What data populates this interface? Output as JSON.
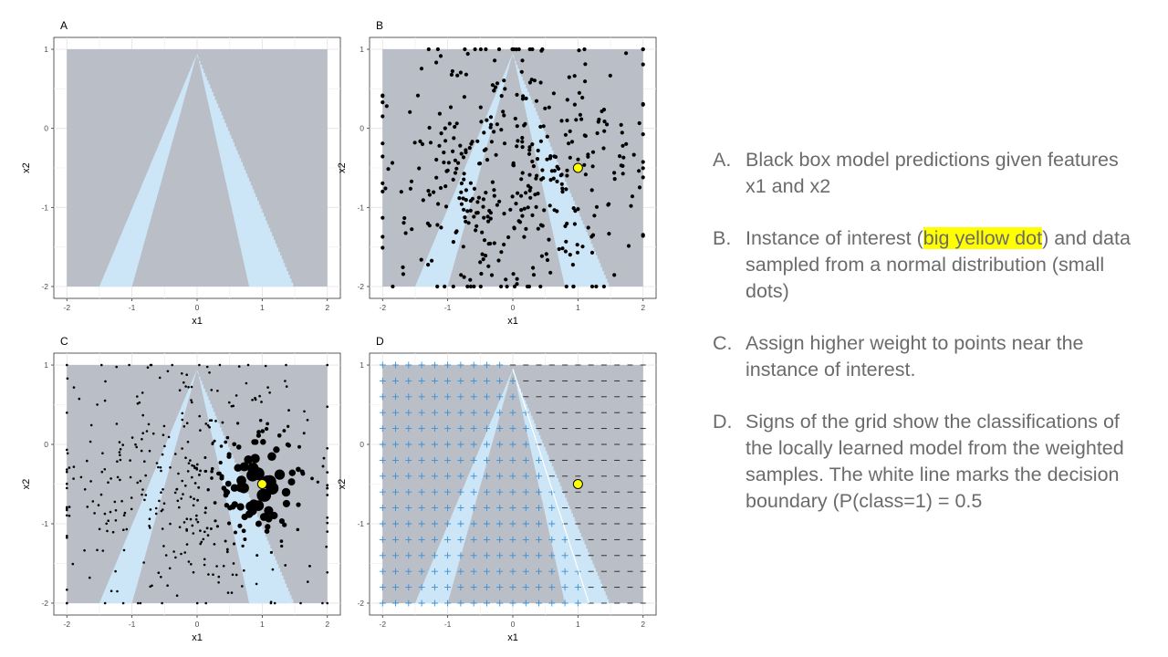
{
  "panels": [
    {
      "letter": "A",
      "xlabel": "x1",
      "ylabel": "x2"
    },
    {
      "letter": "B",
      "xlabel": "x1",
      "ylabel": "x2"
    },
    {
      "letter": "C",
      "xlabel": "x1",
      "ylabel": "x2"
    },
    {
      "letter": "D",
      "xlabel": "x1",
      "ylabel": "x2"
    }
  ],
  "chart_data": [
    {
      "type": "heatmap",
      "panel": "A",
      "xlabel": "x1",
      "ylabel": "x2",
      "xlim": [
        -2.2,
        2.2
      ],
      "ylim": [
        -2.15,
        1.15
      ],
      "xticks": [
        -2,
        -1,
        0,
        1,
        2
      ],
      "yticks": [
        -2,
        -1,
        0,
        1
      ],
      "grid": true,
      "regions": [
        {
          "class": 1,
          "shape": "inverted-V band",
          "apex": [
            0,
            0.95
          ],
          "left_edge_at_y=-2": [
            -1.5,
            -1.0
          ],
          "right_edge_at_y=-2": [
            0.8,
            1.5
          ]
        },
        {
          "class": 0,
          "shape": "rest of domain"
        }
      ],
      "colors": {
        "class0": "#b6bcc4",
        "class1": "#cde6f7"
      }
    },
    {
      "type": "scatter",
      "panel": "B",
      "xlabel": "x1",
      "ylabel": "x2",
      "xlim": [
        -2.2,
        2.2
      ],
      "ylim": [
        -2.15,
        1.15
      ],
      "xticks": [
        -2,
        -1,
        0,
        1,
        2
      ],
      "yticks": [
        -2,
        -1,
        0,
        1
      ],
      "background": "same classification map as A",
      "samples": {
        "n": 420,
        "distribution": "normal, clipped to [-2,2]x[-2,1]",
        "size": "small",
        "color": "#000000"
      },
      "instance_of_interest": {
        "x": 1.0,
        "y": -0.5,
        "color": "#ffff00"
      }
    },
    {
      "type": "scatter",
      "panel": "C",
      "xlabel": "x1",
      "ylabel": "x2",
      "xlim": [
        -2.2,
        2.2
      ],
      "ylim": [
        -2.15,
        1.15
      ],
      "xticks": [
        -2,
        -1,
        0,
        1,
        2
      ],
      "yticks": [
        -2,
        -1,
        0,
        1
      ],
      "background": "same classification map as A",
      "samples": {
        "n": 420,
        "size": "weight = proximity to instance of interest",
        "color": "#000000"
      },
      "instance_of_interest": {
        "x": 1.0,
        "y": -0.5,
        "color": "#ffff00"
      }
    },
    {
      "type": "scatter",
      "panel": "D",
      "xlabel": "x1",
      "ylabel": "x2",
      "xlim": [
        -2.2,
        2.2
      ],
      "ylim": [
        -2.15,
        1.15
      ],
      "xticks": [
        -2,
        -1,
        0,
        1,
        2
      ],
      "yticks": [
        -2,
        -1,
        0,
        1
      ],
      "background": "same classification map as A",
      "grid_signs": {
        "plus_color": "#3b8fd4",
        "minus_color": "#222222",
        "step": 0.2
      },
      "decision_boundary": {
        "from": [
          0.0,
          0.95
        ],
        "to": [
          1.17,
          -2.0
        ],
        "color": "#ffffff"
      },
      "instance_of_interest": {
        "x": 1.0,
        "y": -0.5,
        "color": "#ffff00"
      }
    }
  ],
  "notes": {
    "a": {
      "key": "A.",
      "text": "Black box model predictions given features x1 and x2"
    },
    "b": {
      "key": "B.",
      "pre": "Instance of interest (",
      "highlight": "big yellow dot",
      "post": ") and data sampled from a normal distribution (small dots)"
    },
    "c": {
      "key": "C.",
      "text": "Assign higher weight to points near the instance of interest."
    },
    "d": {
      "key": "D.",
      "text": "Signs of the grid show the classifications of the locally learned model from the weighted samples. The white line marks the decision boundary (P(class=1) = 0.5"
    }
  }
}
